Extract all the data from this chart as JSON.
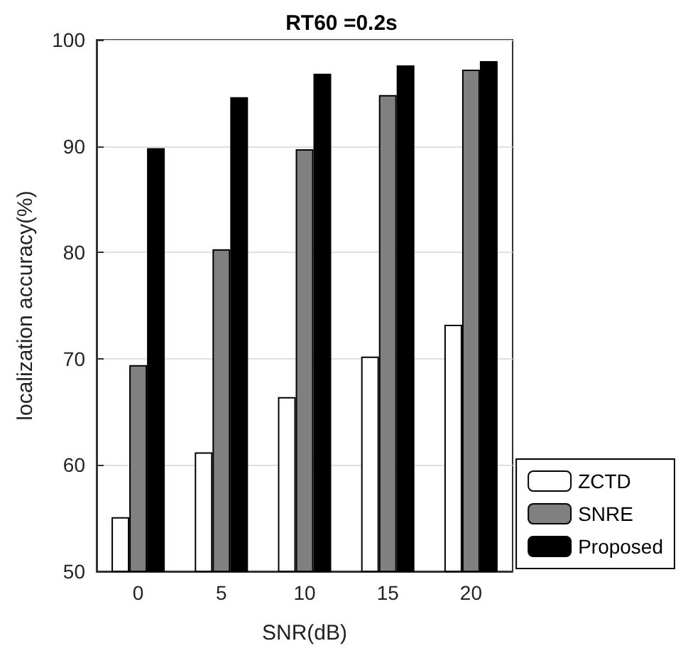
{
  "chart_data": {
    "type": "bar",
    "title": "RT60 =0.2s",
    "xlabel": "SNR(dB)",
    "ylabel": "localization accuracy(%)",
    "categories": [
      "0",
      "5",
      "10",
      "15",
      "20"
    ],
    "series": [
      {
        "name": "ZCTD",
        "color": "#ffffff",
        "values": [
          55.1,
          61.2,
          66.4,
          70.2,
          73.2
        ]
      },
      {
        "name": "SNRE",
        "color": "#808080",
        "values": [
          69.4,
          80.3,
          89.7,
          94.8,
          97.2
        ]
      },
      {
        "name": "Proposed",
        "color": "#000000",
        "values": [
          89.8,
          94.6,
          96.8,
          97.6,
          98.0
        ]
      }
    ],
    "ylim": [
      50,
      100
    ],
    "yticks": [
      50,
      60,
      70,
      80,
      90,
      100
    ],
    "grid": "y",
    "legend": "bottom right"
  }
}
